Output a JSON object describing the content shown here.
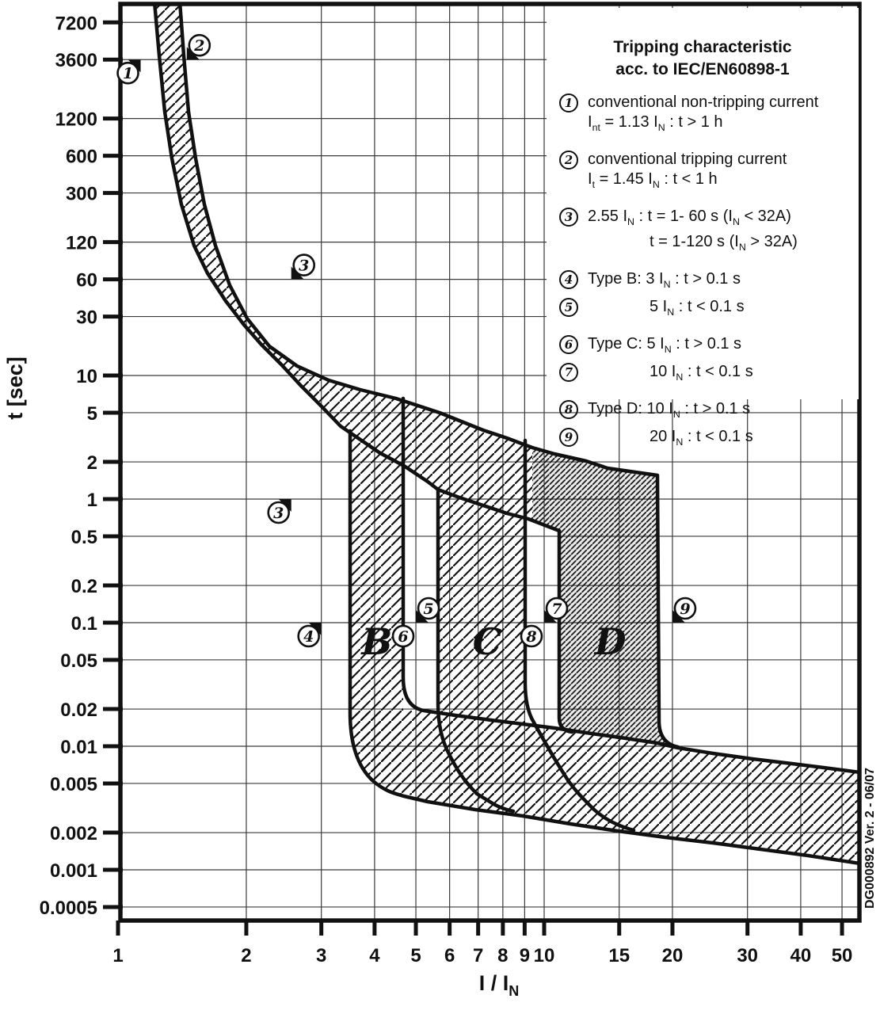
{
  "title_line1": "Tripping characteristic",
  "title_line2": "acc. to IEC/EN60898-1",
  "ylabel": "t [sec]",
  "xlabel": "I / I_N",
  "side_note": "DG000892 Ver. 2 - 06/07",
  "legend": {
    "items": [
      {
        "num": "1",
        "group": "gap",
        "lines": [
          "conventional non-tripping current",
          "I_nt = 1.13 I_N : t > 1 h"
        ]
      },
      {
        "num": "2",
        "group": "gap",
        "lines": [
          "conventional tripping current",
          "I_t = 1.45 I_N : t < 1 h"
        ]
      },
      {
        "num": "3",
        "group": "gap",
        "lines": [
          "2.55 I_N : t = 1- 60 s (I_N < 32A)",
          "[IND]t = 1-120 s (I_N > 32A)"
        ]
      },
      {
        "num": "4",
        "group": "gap",
        "lines": [
          "Type B: 3 I_N : t > 0.1 s"
        ]
      },
      {
        "num": "5",
        "group": "pair",
        "lines": [
          "[IND]5 I_N : t < 0.1 s"
        ]
      },
      {
        "num": "6",
        "group": "gap",
        "lines": [
          "Type C: 5 I_N : t > 0.1 s"
        ]
      },
      {
        "num": "7",
        "group": "pair",
        "lines": [
          "[IND]10 I_N : t < 0.1 s"
        ]
      },
      {
        "num": "8",
        "group": "gap",
        "lines": [
          "Type D: 10 I_N : t > 0.1 s"
        ]
      },
      {
        "num": "9",
        "group": "pair",
        "lines": [
          "[IND]20 I_N : t < 0.1 s"
        ]
      }
    ]
  },
  "chart_data": {
    "type": "line",
    "title": "Tripping characteristic acc. to IEC/EN60898-1",
    "xlabel": "I / I_N",
    "ylabel": "t [sec]",
    "x_scale": "log",
    "y_scale": "log",
    "xlim": [
      1,
      55
    ],
    "ylim": [
      0.0004,
      10000
    ],
    "grid": true,
    "x_ticks": [
      1,
      2,
      3,
      4,
      5,
      6,
      7,
      8,
      9,
      10,
      15,
      20,
      30,
      40,
      50
    ],
    "y_ticks": [
      7200,
      3600,
      1200,
      600,
      300,
      120,
      60,
      30,
      10,
      5,
      2,
      1,
      0.5,
      0.2,
      0.1,
      0.05,
      0.02,
      0.01,
      0.005,
      0.002,
      0.001,
      0.0005
    ],
    "bands": {
      "thermal": {
        "non_tripping_multiple": 1.13,
        "tripping_multiple": 1.45,
        "note": "2.55 I_N: t = 1-60 s (I_N < 32A), t = 1-120 s (I_N > 32A)"
      },
      "B": {
        "instantaneous_range": [
          3,
          5
        ],
        "drawn_range": [
          3.5,
          4.7
        ]
      },
      "C": {
        "instantaneous_range": [
          5,
          10
        ],
        "drawn_range": [
          5.7,
          9.1
        ]
      },
      "D": {
        "instantaneous_range": [
          10,
          20
        ],
        "drawn_range": [
          9.5,
          18.7
        ]
      }
    },
    "zone_labels": [
      {
        "label": "B",
        "v": 4.05,
        "t": 0.07
      },
      {
        "label": "C",
        "v": 7.35,
        "t": 0.07
      },
      {
        "label": "D",
        "v": 14.3,
        "t": 0.07
      }
    ],
    "markers": [
      {
        "n": "1",
        "v": 1.13,
        "t": 3600,
        "placement": "bl",
        "flag": true
      },
      {
        "n": "2",
        "v": 1.45,
        "t": 3600,
        "placement": "ar",
        "flag": true
      },
      {
        "n": "3",
        "v": 2.55,
        "t": 60,
        "placement": "ar",
        "flag": true
      },
      {
        "n": "3",
        "v": 2.55,
        "t": 1,
        "placement": "bl",
        "flag": true
      },
      {
        "n": "4",
        "v": 3,
        "t": 0.1,
        "placement": "bl",
        "flag": true
      },
      {
        "n": "5",
        "v": 5,
        "t": 0.1,
        "placement": "ar",
        "flag": true
      },
      {
        "n": "6",
        "v": 5,
        "t": 0.1,
        "placement": "bl",
        "flag": false
      },
      {
        "n": "7",
        "v": 10,
        "t": 0.1,
        "placement": "ar",
        "flag": true
      },
      {
        "n": "8",
        "v": 10,
        "t": 0.1,
        "placement": "bl",
        "flag": false
      },
      {
        "n": "9",
        "v": 20,
        "t": 0.1,
        "placement": "ar",
        "flag": true
      }
    ]
  }
}
